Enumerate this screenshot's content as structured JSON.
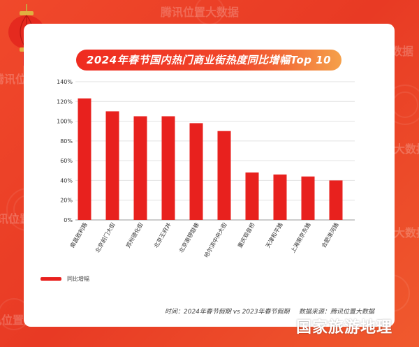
{
  "watermark": {
    "text": "腾讯位置大数据"
  },
  "chart_data": {
    "type": "bar",
    "title": "2024年春节国内热门商业街热度同比增幅Top 10",
    "categories": [
      "南昌胜利路",
      "北京前门大街",
      "郑州德化街",
      "北京王府井",
      "北京南锣鼓巷",
      "哈尔滨中央大街",
      "重庆观音桥",
      "天津和平路",
      "上海南京东路",
      "合肥淮河路"
    ],
    "series": [
      {
        "name": "同比增幅",
        "values": [
          1.23,
          1.1,
          1.05,
          1.05,
          0.98,
          0.9,
          0.48,
          0.46,
          0.44,
          0.4
        ]
      }
    ],
    "ylim": [
      0,
      1.4
    ],
    "yticks": [
      "0%",
      "20%",
      "40%",
      "60%",
      "80%",
      "100%",
      "120%",
      "140%"
    ],
    "grid": true,
    "legend": "bottom-left",
    "bar_color": "#e8211e"
  },
  "footer": {
    "time_note": "时间：2024年春节假期 vs 2023年春节假期",
    "source_note": "数据来源：腾讯位置大数据"
  },
  "brand": "国家旅游地理"
}
